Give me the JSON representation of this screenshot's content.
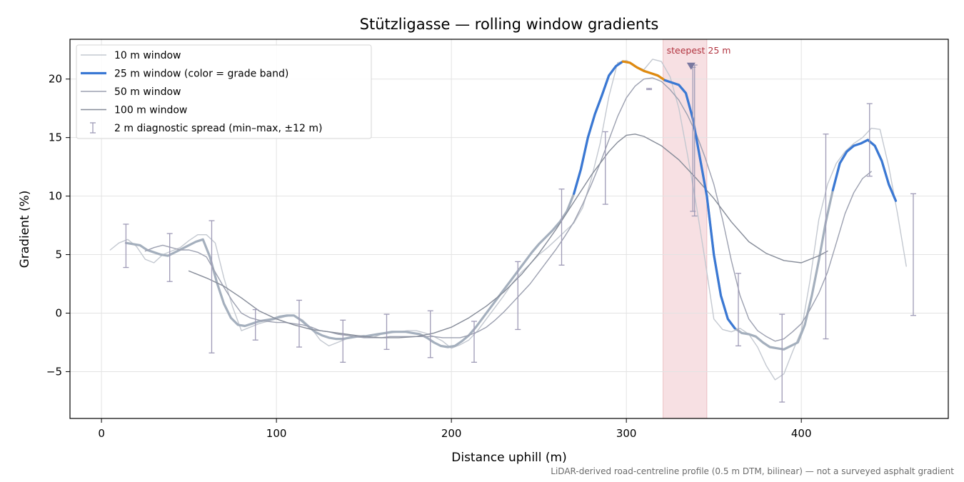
{
  "chart_data": {
    "type": "line",
    "title": "Stützligasse — rolling window gradients",
    "xlabel": "Distance uphill (m)",
    "ylabel": "Gradient (%)",
    "xlim": [
      -18,
      484
    ],
    "ylim": [
      -9,
      23.4
    ],
    "xticks": [
      0,
      100,
      200,
      300,
      400
    ],
    "yticks": [
      -5,
      0,
      5,
      10,
      15,
      20
    ],
    "ytick_labels": [
      "−5",
      "0",
      "5",
      "10",
      "15",
      "20"
    ],
    "grid": true,
    "legend_position": "top-left",
    "footnote": "LiDAR-derived road-centreline profile (0.5 m DTM, bilinear) — not a surveyed asphalt gradient",
    "highlight_band": {
      "x_start": 321,
      "x_end": 346,
      "label": "steepest 25 m",
      "marker_x": 337,
      "marker_y": 21.1
    },
    "colors": {
      "w10": "#c3c8d0",
      "w25_base": "#a4afbd",
      "w25_high": "#3a78d4",
      "w25_steep": "#e08a0e",
      "w50": "#9ca0b0",
      "w100": "#858b98",
      "errorbar": "#9e9ab6",
      "band": "#f4d6d9",
      "marker": "#7a78a0"
    },
    "legend": [
      {
        "key": "w10",
        "label": "10 m window"
      },
      {
        "key": "w25",
        "label": "25 m window (color = grade band)"
      },
      {
        "key": "w50",
        "label": "50 m window"
      },
      {
        "key": "w100",
        "label": "100 m window"
      },
      {
        "key": "err",
        "label": "2 m diagnostic spread (min–max, ±12 m)"
      }
    ],
    "series": [
      {
        "key": "w10",
        "x": [
          5,
          10,
          15,
          20,
          25,
          30,
          35,
          40,
          45,
          50,
          55,
          60,
          65,
          70,
          75,
          80,
          85,
          90,
          95,
          100,
          105,
          110,
          115,
          120,
          125,
          130,
          135,
          140,
          145,
          150,
          155,
          160,
          165,
          170,
          175,
          180,
          185,
          190,
          195,
          200,
          205,
          210,
          215,
          220,
          225,
          230,
          235,
          240,
          245,
          250,
          255,
          260,
          265,
          270,
          275,
          280,
          285,
          290,
          295,
          300,
          305,
          310,
          315,
          320,
          325,
          330,
          335,
          340,
          345,
          350,
          355,
          360,
          365,
          370,
          375,
          380,
          385,
          390,
          395,
          400,
          405,
          410,
          415,
          420,
          425,
          430,
          435,
          440,
          445,
          450,
          455,
          460
        ],
        "y": [
          5.4,
          6.0,
          6.3,
          5.7,
          4.6,
          4.3,
          5.0,
          5.3,
          5.6,
          6.2,
          6.7,
          6.7,
          6.0,
          3.0,
          0.5,
          -1.5,
          -1.2,
          -0.9,
          -0.7,
          -0.5,
          -0.3,
          -0.2,
          -0.6,
          -1.3,
          -2.3,
          -2.8,
          -2.5,
          -2.2,
          -2.0,
          -1.9,
          -2.1,
          -1.8,
          -1.7,
          -1.6,
          -1.5,
          -1.5,
          -1.7,
          -2.0,
          -2.4,
          -3.0,
          -2.7,
          -2.3,
          -1.5,
          -0.5,
          0.5,
          1.5,
          2.6,
          3.5,
          4.2,
          5.0,
          5.6,
          6.3,
          7.0,
          7.7,
          9.0,
          11.5,
          14.5,
          18.5,
          21.4,
          21.6,
          21.1,
          20.8,
          21.7,
          21.5,
          20.2,
          17.5,
          13.5,
          9.2,
          4.5,
          -0.5,
          -1.4,
          -1.6,
          -1.3,
          -1.8,
          -2.9,
          -4.5,
          -5.7,
          -5.2,
          -3.3,
          -1.5,
          2.8,
          8.0,
          11.0,
          12.8,
          13.8,
          14.5,
          15.0,
          15.8,
          15.7,
          12.5,
          8.5,
          4.0
        ]
      },
      {
        "key": "w25",
        "x": [
          14,
          18,
          22,
          26,
          30,
          34,
          38,
          42,
          46,
          50,
          54,
          58,
          62,
          66,
          70,
          74,
          78,
          82,
          86,
          90,
          94,
          98,
          102,
          106,
          110,
          114,
          118,
          122,
          126,
          130,
          134,
          138,
          142,
          146,
          150,
          154,
          158,
          162,
          166,
          170,
          174,
          178,
          182,
          186,
          190,
          194,
          198,
          202,
          206,
          210,
          214,
          218,
          222,
          226,
          230,
          234,
          238,
          242,
          246,
          250,
          254,
          258,
          262,
          266,
          270,
          274,
          278,
          282,
          286,
          290,
          294,
          298,
          302,
          306,
          310,
          314,
          318,
          322,
          326,
          330,
          334,
          338,
          342,
          346,
          350,
          354,
          358,
          362,
          366,
          370,
          374,
          378,
          382,
          386,
          390,
          394,
          398,
          402,
          406,
          410,
          414,
          418,
          422,
          426,
          430,
          434,
          438,
          442,
          446,
          450,
          454
        ],
        "y": [
          6.0,
          5.9,
          5.8,
          5.4,
          5.2,
          5.0,
          4.9,
          5.2,
          5.5,
          5.8,
          6.1,
          6.3,
          4.8,
          2.6,
          0.8,
          -0.4,
          -1.0,
          -1.1,
          -0.9,
          -0.7,
          -0.6,
          -0.5,
          -0.3,
          -0.2,
          -0.2,
          -0.6,
          -1.1,
          -1.6,
          -1.9,
          -2.1,
          -2.2,
          -2.2,
          -2.1,
          -2.0,
          -2.0,
          -1.9,
          -1.8,
          -1.7,
          -1.6,
          -1.6,
          -1.6,
          -1.7,
          -1.8,
          -2.1,
          -2.5,
          -2.8,
          -2.9,
          -2.8,
          -2.4,
          -1.9,
          -1.2,
          -0.4,
          0.4,
          1.2,
          2.0,
          2.8,
          3.6,
          4.4,
          5.2,
          5.9,
          6.5,
          7.1,
          7.8,
          8.7,
          10.2,
          12.3,
          15.0,
          17.0,
          18.6,
          20.3,
          21.1,
          21.5,
          21.4,
          21.0,
          20.7,
          20.5,
          20.3,
          19.9,
          19.7,
          19.5,
          18.8,
          16.6,
          13.3,
          10.0,
          5.0,
          1.5,
          -0.5,
          -1.3,
          -1.7,
          -1.8,
          -2.0,
          -2.5,
          -2.9,
          -3.0,
          -3.1,
          -2.8,
          -2.5,
          -1.0,
          1.5,
          4.5,
          7.8,
          10.5,
          12.8,
          13.8,
          14.3,
          14.5,
          14.8,
          14.3,
          13.0,
          11.0,
          9.6
        ]
      },
      {
        "key": "w50",
        "x": [
          25,
          30,
          35,
          40,
          45,
          50,
          55,
          60,
          65,
          70,
          75,
          80,
          85,
          90,
          95,
          100,
          105,
          110,
          115,
          120,
          125,
          130,
          135,
          140,
          145,
          150,
          155,
          160,
          165,
          170,
          175,
          180,
          185,
          190,
          195,
          200,
          205,
          210,
          215,
          220,
          225,
          230,
          235,
          240,
          245,
          250,
          255,
          260,
          265,
          270,
          275,
          280,
          285,
          290,
          295,
          300,
          305,
          310,
          315,
          320,
          325,
          330,
          335,
          340,
          345,
          350,
          355,
          360,
          365,
          370,
          375,
          380,
          385,
          390,
          395,
          400,
          405,
          410,
          415,
          420,
          425,
          430,
          435,
          440
        ],
        "y": [
          5.3,
          5.6,
          5.8,
          5.6,
          5.4,
          5.4,
          5.2,
          4.8,
          3.5,
          2.2,
          1.0,
          0.0,
          -0.4,
          -0.6,
          -0.7,
          -0.8,
          -0.8,
          -0.9,
          -1.0,
          -1.2,
          -1.5,
          -1.6,
          -1.8,
          -1.9,
          -2.0,
          -2.1,
          -2.1,
          -2.1,
          -2.0,
          -2.0,
          -2.0,
          -2.0,
          -2.0,
          -2.0,
          -2.1,
          -2.1,
          -2.1,
          -1.9,
          -1.6,
          -1.2,
          -0.6,
          0.1,
          0.9,
          1.7,
          2.5,
          3.5,
          4.5,
          5.5,
          6.6,
          7.8,
          9.3,
          11.0,
          12.8,
          14.8,
          16.8,
          18.4,
          19.4,
          20.0,
          20.1,
          19.8,
          19.1,
          18.2,
          16.9,
          15.3,
          13.3,
          11.0,
          8.0,
          4.5,
          1.5,
          -0.5,
          -1.5,
          -2.0,
          -2.4,
          -2.2,
          -1.6,
          -0.9,
          0.3,
          1.7,
          3.5,
          6.0,
          8.5,
          10.3,
          11.5,
          12.1
        ]
      },
      {
        "key": "w100",
        "x": [
          50,
          60,
          70,
          80,
          90,
          100,
          110,
          120,
          130,
          140,
          150,
          160,
          170,
          180,
          190,
          200,
          210,
          220,
          230,
          240,
          250,
          260,
          270,
          280,
          290,
          295,
          300,
          305,
          310,
          320,
          330,
          340,
          350,
          360,
          370,
          380,
          390,
          395,
          400,
          410,
          415
        ],
        "y": [
          3.6,
          3.0,
          2.3,
          1.3,
          0.2,
          -0.5,
          -1.0,
          -1.4,
          -1.6,
          -1.8,
          -2.0,
          -2.1,
          -2.1,
          -2.0,
          -1.7,
          -1.2,
          -0.4,
          0.6,
          1.8,
          3.3,
          5.1,
          7.2,
          9.5,
          11.8,
          13.8,
          14.6,
          15.2,
          15.3,
          15.1,
          14.3,
          13.1,
          11.5,
          9.8,
          7.8,
          6.1,
          5.1,
          4.5,
          4.4,
          4.3,
          4.9,
          5.3
        ]
      }
    ],
    "w25_highlight_segments": [
      {
        "grade": "high",
        "x": [
          270,
          274,
          278,
          282,
          286,
          290,
          294,
          298
        ]
      },
      {
        "grade": "steep",
        "x": [
          298,
          302,
          306,
          310,
          314,
          318,
          322
        ]
      },
      {
        "grade": "high",
        "x": [
          322,
          326,
          330,
          334,
          338,
          342,
          346,
          350,
          354,
          358,
          362
        ]
      },
      {
        "grade": "high",
        "x": [
          418,
          422,
          426,
          430,
          434,
          438,
          442,
          446,
          450,
          454
        ]
      }
    ],
    "errorbars": {
      "x": [
        14,
        39,
        63,
        88,
        113,
        138,
        163,
        188,
        213,
        238,
        263,
        288,
        313,
        338,
        339,
        364,
        389,
        414,
        439,
        464
      ],
      "ymin": [
        3.9,
        2.7,
        -3.4,
        -2.3,
        -2.9,
        -4.2,
        -3.1,
        -3.8,
        -4.2,
        -1.4,
        4.1,
        9.3,
        19.1,
        8.7,
        8.3,
        -2.8,
        -7.6,
        -2.2,
        11.7,
        -0.2
      ],
      "ymax": [
        7.6,
        6.8,
        7.9,
        0.3,
        1.1,
        -0.6,
        -0.1,
        0.2,
        -0.7,
        4.4,
        10.6,
        15.5,
        19.2,
        21.0,
        21.2,
        3.4,
        -0.1,
        15.3,
        17.9,
        10.2
      ]
    }
  }
}
